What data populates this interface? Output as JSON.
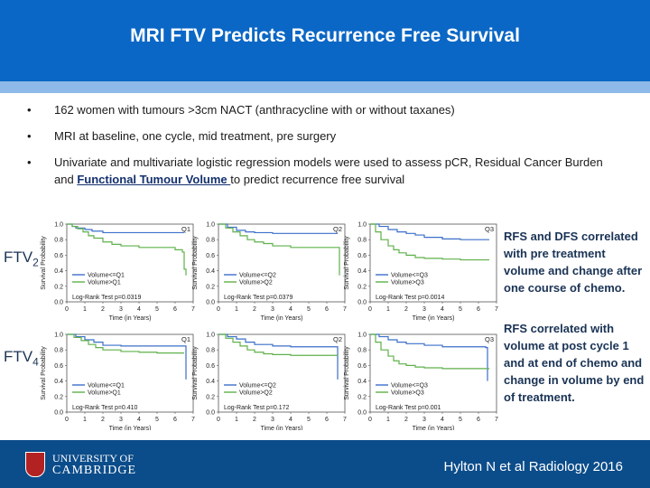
{
  "slide": {
    "title": "MRI FTV Predicts Recurrence Free Survival",
    "bullets": [
      {
        "text": "162 women with tumours >3cm NACT (anthracycline with or without taxanes)"
      },
      {
        "text": "MRI at baseline, one cycle, mid treatment, pre surgery"
      },
      {
        "text_before": "Univariate and multivariate logistic regression models were used to assess pCR, Residual Cancer Burden and ",
        "link": "Functional Tumour Volume ",
        "text_after": "to predict recurrence free survival"
      }
    ],
    "ftv2_label": "FTV",
    "ftv2_sub": "2",
    "ftv4_label": "FTV",
    "ftv4_sub": "4",
    "right_text_1": "RFS and DFS correlated with pre treatment volume and change after one course of chemo.",
    "right_text_2": "RFS correlated with volume at post cycle 1 and at end of chemo and change in volume by end of treatment.",
    "citation": "Hylton N et al Radiology 2016",
    "logo_line1": "UNIVERSITY OF",
    "logo_line2": "CAMBRIDGE"
  },
  "chart_data": [
    {
      "type": "line",
      "panel": "FTV2 Q1",
      "title": "Q1",
      "xlabel": "Time (in Years)",
      "ylabel": "Survival Probability",
      "xlim": [
        0,
        7
      ],
      "ylim": [
        0,
        1
      ],
      "series": [
        {
          "name": "Volume<=Q1",
          "color": "#3b6fc9",
          "x": [
            0,
            0.3,
            0.5,
            1,
            1.4,
            2,
            3,
            6.5
          ],
          "y": [
            1,
            0.97,
            0.95,
            0.93,
            0.91,
            0.89,
            0.89,
            0.89
          ]
        },
        {
          "name": "Volume>Q1",
          "color": "#5fb14a",
          "x": [
            0,
            0.3,
            0.6,
            0.9,
            1.2,
            1.5,
            2,
            2.5,
            3,
            4,
            5,
            6,
            6.4,
            6.5,
            6.6
          ],
          "y": [
            1,
            0.97,
            0.94,
            0.9,
            0.85,
            0.82,
            0.77,
            0.74,
            0.72,
            0.7,
            0.7,
            0.67,
            0.64,
            0.42,
            0.34
          ]
        }
      ],
      "annotation": "Log-Rank Test p=0.0319"
    },
    {
      "type": "line",
      "panel": "FTV2 Q2",
      "title": "Q2",
      "xlabel": "Time (in Years)",
      "ylabel": "Survival Probability",
      "xlim": [
        0,
        7
      ],
      "ylim": [
        0,
        1
      ],
      "series": [
        {
          "name": "Volume<=Q2",
          "color": "#3b6fc9",
          "x": [
            0,
            0.5,
            1,
            1.5,
            2,
            3,
            5,
            6.6
          ],
          "y": [
            1,
            0.96,
            0.92,
            0.9,
            0.89,
            0.88,
            0.88,
            0.88
          ]
        },
        {
          "name": "Volume>Q2",
          "color": "#5fb14a",
          "x": [
            0,
            0.4,
            0.8,
            1.2,
            1.6,
            2,
            2.5,
            3,
            4,
            5,
            6,
            6.6,
            6.7
          ],
          "y": [
            1,
            0.95,
            0.9,
            0.85,
            0.8,
            0.77,
            0.75,
            0.72,
            0.7,
            0.7,
            0.7,
            0.7,
            0.34
          ]
        }
      ],
      "annotation": "Log-Rank Test p=0.0379"
    },
    {
      "type": "line",
      "panel": "FTV2 Q3",
      "title": "Q3",
      "xlabel": "Time (in Years)",
      "ylabel": "Survival Probability",
      "xlim": [
        0,
        7
      ],
      "ylim": [
        0,
        1
      ],
      "series": [
        {
          "name": "Volume<=Q3",
          "color": "#3b6fc9",
          "x": [
            0,
            0.5,
            1,
            1.5,
            2,
            2.5,
            3,
            4,
            5,
            6.6
          ],
          "y": [
            1,
            0.97,
            0.93,
            0.9,
            0.88,
            0.86,
            0.83,
            0.81,
            0.8,
            0.8
          ]
        },
        {
          "name": "Volume>Q3",
          "color": "#5fb14a",
          "x": [
            0,
            0.3,
            0.6,
            1,
            1.3,
            1.6,
            2,
            2.5,
            3,
            4,
            5,
            6.6
          ],
          "y": [
            1,
            0.9,
            0.8,
            0.72,
            0.67,
            0.63,
            0.6,
            0.57,
            0.56,
            0.55,
            0.54,
            0.54
          ]
        }
      ],
      "annotation": "Log-Rank Test p=0.0014"
    },
    {
      "type": "line",
      "panel": "FTV4 Q1",
      "title": "Q1",
      "xlabel": "Time (in Years)",
      "ylabel": "Survival Probability",
      "xlim": [
        0,
        7
      ],
      "ylim": [
        0,
        1
      ],
      "series": [
        {
          "name": "Volume<=Q1",
          "color": "#3b6fc9",
          "x": [
            0,
            0.5,
            1,
            1.5,
            2,
            3,
            4,
            6.5,
            6.6
          ],
          "y": [
            1,
            0.97,
            0.93,
            0.9,
            0.86,
            0.85,
            0.85,
            0.85,
            0.42
          ]
        },
        {
          "name": "Volume>Q1",
          "color": "#5fb14a",
          "x": [
            0,
            0.4,
            0.8,
            1.2,
            1.6,
            2,
            3,
            4,
            5,
            6.5
          ],
          "y": [
            1,
            0.96,
            0.92,
            0.87,
            0.83,
            0.8,
            0.78,
            0.77,
            0.76,
            0.76
          ]
        }
      ],
      "annotation": "Log-Rank Test p=0.410"
    },
    {
      "type": "line",
      "panel": "FTV4 Q2",
      "title": "Q2",
      "xlabel": "Time (in Years)",
      "ylabel": "Survival Probability",
      "xlim": [
        0,
        7
      ],
      "ylim": [
        0,
        1
      ],
      "series": [
        {
          "name": "Volume<=Q2",
          "color": "#3b6fc9",
          "x": [
            0,
            0.5,
            1,
            1.5,
            2,
            3,
            4,
            5,
            6.5,
            6.6
          ],
          "y": [
            1,
            0.97,
            0.94,
            0.9,
            0.87,
            0.85,
            0.84,
            0.84,
            0.84,
            0.42
          ]
        },
        {
          "name": "Volume>Q2",
          "color": "#5fb14a",
          "x": [
            0,
            0.4,
            0.8,
            1.2,
            1.6,
            2,
            2.5,
            3,
            4,
            6.6
          ],
          "y": [
            1,
            0.95,
            0.9,
            0.85,
            0.8,
            0.77,
            0.75,
            0.74,
            0.73,
            0.73
          ]
        }
      ],
      "annotation": "Log-Rank Test p=0.172"
    },
    {
      "type": "line",
      "panel": "FTV4 Q3",
      "title": "Q3",
      "xlabel": "Time (in Years)",
      "ylabel": "Survival Probability",
      "xlim": [
        0,
        7
      ],
      "ylim": [
        0,
        1
      ],
      "series": [
        {
          "name": "Volume<=Q3",
          "color": "#3b6fc9",
          "x": [
            0,
            0.5,
            1,
            1.5,
            2,
            3,
            4,
            5,
            6.4,
            6.5
          ],
          "y": [
            1,
            0.97,
            0.93,
            0.9,
            0.88,
            0.86,
            0.84,
            0.84,
            0.83,
            0.4
          ]
        },
        {
          "name": "Volume>Q3",
          "color": "#5fb14a",
          "x": [
            0,
            0.3,
            0.6,
            1,
            1.3,
            1.6,
            2,
            2.5,
            3,
            4,
            6.6
          ],
          "y": [
            1,
            0.9,
            0.8,
            0.72,
            0.66,
            0.62,
            0.6,
            0.58,
            0.57,
            0.56,
            0.56
          ]
        }
      ],
      "annotation": "Log-Rank Test p=0.001"
    }
  ]
}
